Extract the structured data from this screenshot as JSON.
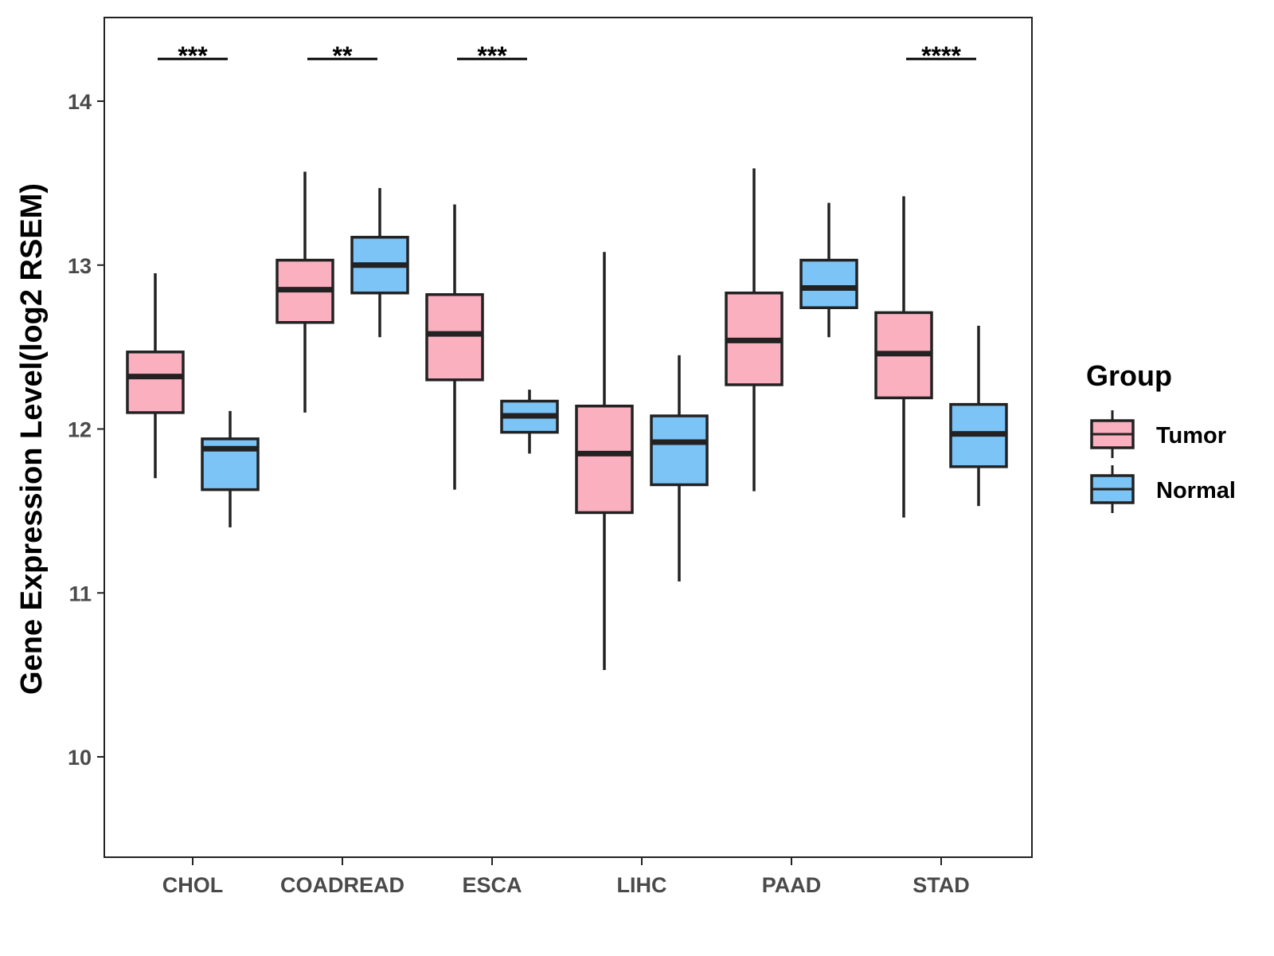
{
  "chart_data": {
    "type": "boxplot",
    "title": "",
    "xlabel": "",
    "ylabel": "Gene Expression Level(log2 RSEM)",
    "ylim": [
      9.4,
      14.5
    ],
    "yticks": [
      10,
      11,
      12,
      13,
      14
    ],
    "ytick_labels": [
      "10",
      "11",
      "12",
      "13",
      "14"
    ],
    "grid": false,
    "categories": [
      "CHOL",
      "COADREAD",
      "ESCA",
      "LIHC",
      "PAAD",
      "STAD"
    ],
    "series": [
      {
        "name": "Tumor",
        "color": "#FBB0C0",
        "boxes": [
          {
            "min": 11.7,
            "q1": 12.1,
            "median": 12.32,
            "q3": 12.47,
            "max": 12.95
          },
          {
            "min": 12.1,
            "q1": 12.65,
            "median": 12.85,
            "q3": 13.03,
            "max": 13.57
          },
          {
            "min": 11.63,
            "q1": 12.3,
            "median": 12.58,
            "q3": 12.82,
            "max": 13.37
          },
          {
            "min": 10.53,
            "q1": 11.49,
            "median": 11.85,
            "q3": 12.14,
            "max": 13.08
          },
          {
            "min": 11.62,
            "q1": 12.27,
            "median": 12.54,
            "q3": 12.83,
            "max": 13.59
          },
          {
            "min": 11.46,
            "q1": 12.19,
            "median": 12.46,
            "q3": 12.71,
            "max": 13.42
          }
        ]
      },
      {
        "name": "Normal",
        "color": "#7CC3F6",
        "boxes": [
          {
            "min": 11.4,
            "q1": 11.63,
            "median": 11.88,
            "q3": 11.94,
            "max": 12.11
          },
          {
            "min": 12.56,
            "q1": 12.83,
            "median": 13.0,
            "q3": 13.17,
            "max": 13.47
          },
          {
            "min": 11.85,
            "q1": 11.98,
            "median": 12.08,
            "q3": 12.17,
            "max": 12.24
          },
          {
            "min": 11.07,
            "q1": 11.66,
            "median": 11.92,
            "q3": 12.08,
            "max": 12.45
          },
          {
            "min": 12.56,
            "q1": 12.74,
            "median": 12.86,
            "q3": 13.03,
            "max": 13.38
          },
          {
            "min": 11.53,
            "q1": 11.77,
            "median": 11.97,
            "q3": 12.15,
            "max": 12.63
          }
        ]
      }
    ],
    "significance": [
      {
        "category": "CHOL",
        "label": "***"
      },
      {
        "category": "COADREAD",
        "label": "**"
      },
      {
        "category": "ESCA",
        "label": "***"
      },
      {
        "category": "STAD",
        "label": "****"
      }
    ],
    "legend": {
      "title": "Group",
      "position": "right",
      "entries": [
        "Tumor",
        "Normal"
      ]
    }
  }
}
